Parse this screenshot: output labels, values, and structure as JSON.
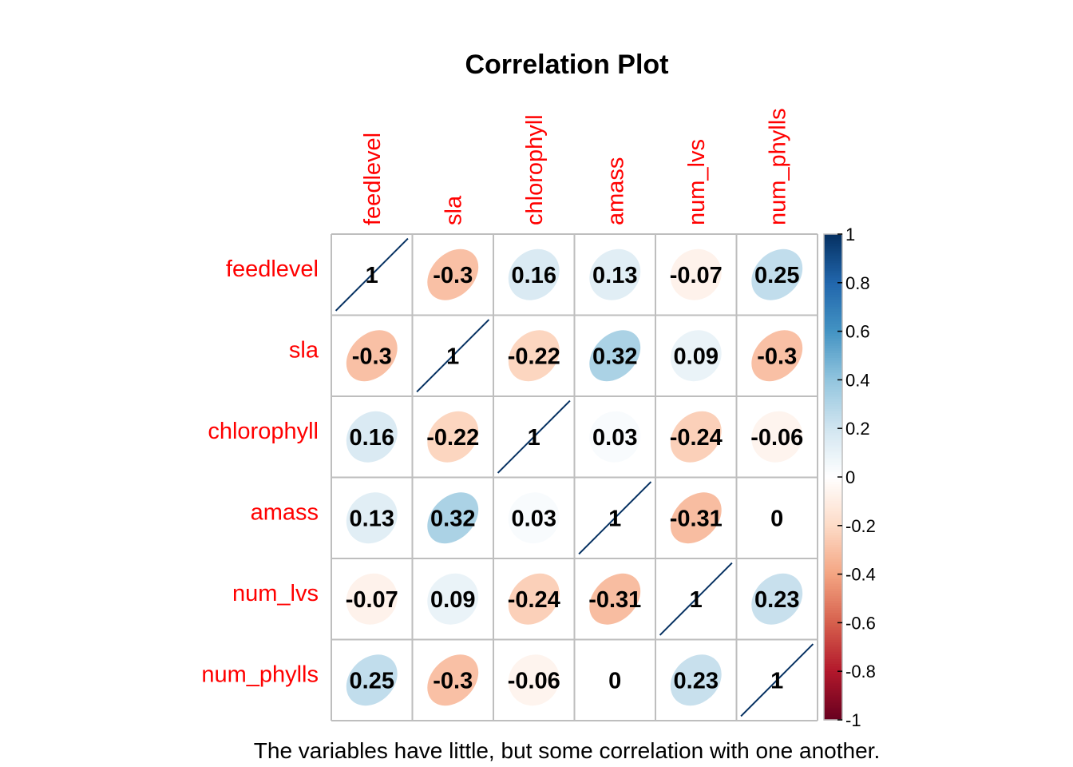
{
  "chart_data": {
    "type": "heatmap",
    "subtype": "correlation-ellipse",
    "title": "Correlation Plot",
    "caption": "The variables have little, but some correlation with one another.",
    "variables": [
      "feedlevel",
      "sla",
      "chlorophyll",
      "amass",
      "num_lvs",
      "num_phylls"
    ],
    "matrix": [
      [
        1,
        -0.3,
        0.16,
        0.13,
        -0.07,
        0.25
      ],
      [
        -0.3,
        1,
        -0.22,
        0.32,
        0.09,
        -0.3
      ],
      [
        0.16,
        -0.22,
        1,
        0.03,
        -0.24,
        -0.06
      ],
      [
        0.13,
        0.32,
        0.03,
        1,
        -0.31,
        0
      ],
      [
        -0.07,
        0.09,
        -0.24,
        -0.31,
        1,
        0.23
      ],
      [
        0.25,
        -0.3,
        -0.06,
        0,
        0.23,
        1
      ]
    ],
    "labels": [
      [
        "1",
        "-0.3",
        "0.16",
        "0.13",
        "-0.07",
        "0.25"
      ],
      [
        "-0.3",
        "1",
        "-0.22",
        "0.32",
        "0.09",
        "-0.3"
      ],
      [
        "0.16",
        "-0.22",
        "1",
        "0.03",
        "-0.24",
        "-0.06"
      ],
      [
        "0.13",
        "0.32",
        "0.03",
        "1",
        "-0.31",
        "0"
      ],
      [
        "-0.07",
        "0.09",
        "-0.24",
        "-0.31",
        "1",
        "0.23"
      ],
      [
        "0.25",
        "-0.3",
        "-0.06",
        "0",
        "0.23",
        "1"
      ]
    ],
    "colorbar": {
      "range": [
        -1,
        1
      ],
      "ticks": [
        "1",
        "0.8",
        "0.6",
        "0.4",
        "0.2",
        "0",
        "-0.2",
        "-0.4",
        "-0.6",
        "-0.8",
        "-1"
      ],
      "colors": [
        "#67001F",
        "#B2182B",
        "#D6604D",
        "#F4A582",
        "#FDDBC7",
        "#FFFFFF",
        "#D1E5F0",
        "#92C5DE",
        "#4393C3",
        "#2166AC",
        "#053061"
      ]
    },
    "label_color": "#ff0000",
    "grid_color": "#bebebe"
  }
}
